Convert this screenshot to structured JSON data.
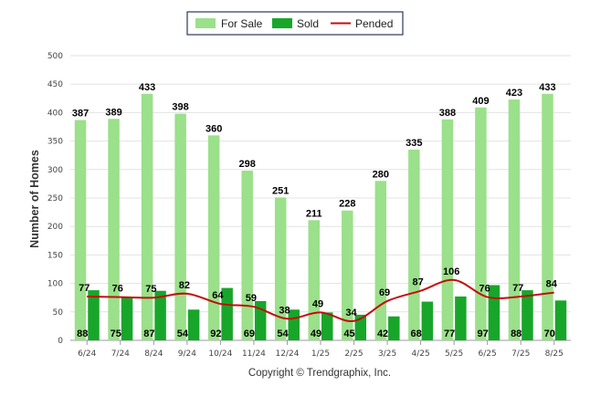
{
  "chart_data": {
    "type": "bar",
    "categories": [
      "6/24",
      "7/24",
      "8/24",
      "9/24",
      "10/24",
      "11/24",
      "12/24",
      "1/25",
      "2/25",
      "3/25",
      "4/25",
      "5/25",
      "6/25",
      "7/25",
      "8/25"
    ],
    "ylabel": "Number of Homes",
    "xlabel": "",
    "ylim": [
      0,
      500
    ],
    "yticks": [
      0,
      50,
      100,
      150,
      200,
      250,
      300,
      350,
      400,
      450,
      500
    ],
    "grid": true,
    "legend_position": "top-center",
    "series": [
      {
        "name": "For Sale",
        "type": "bar",
        "color": "#9be08a",
        "values": [
          387,
          389,
          433,
          398,
          360,
          298,
          251,
          211,
          228,
          280,
          335,
          388,
          409,
          423,
          433
        ]
      },
      {
        "name": "Sold",
        "type": "bar",
        "color": "#17a62a",
        "values": [
          88,
          75,
          87,
          54,
          92,
          69,
          54,
          49,
          45,
          42,
          68,
          77,
          97,
          88,
          70
        ]
      },
      {
        "name": "Pended",
        "type": "line",
        "color": "#c40d0d",
        "values": [
          77,
          76,
          75,
          82,
          64,
          59,
          38,
          49,
          34,
          69,
          87,
          106,
          76,
          77,
          84
        ]
      }
    ]
  },
  "footer": {
    "copyright": "Copyright © Trendgraphix, Inc."
  }
}
